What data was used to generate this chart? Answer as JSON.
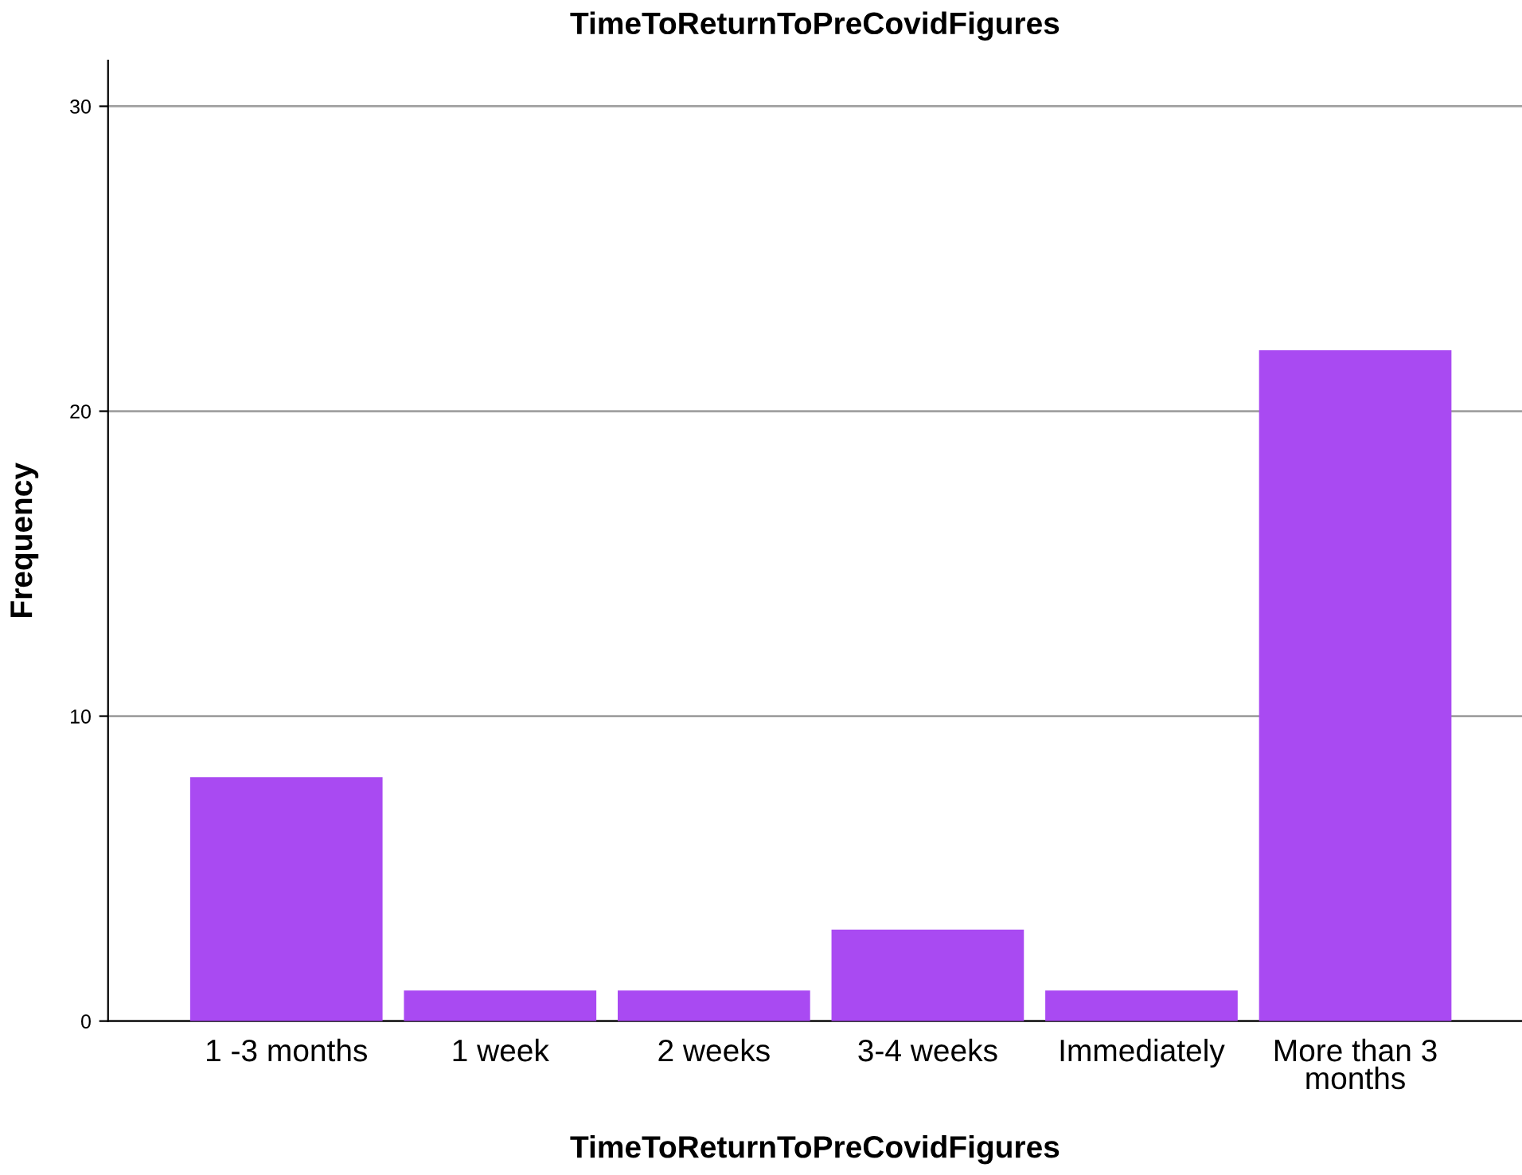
{
  "chart_data": {
    "type": "bar",
    "title": "TimeToReturnToPreCovidFigures",
    "xlabel": "TimeToReturnToPreCovidFigures",
    "ylabel": "Frequency",
    "categories": [
      "1 -3 months",
      "1 week",
      "2 weeks",
      "3-4 weeks",
      "Immediately",
      "More than 3\nmonths"
    ],
    "values": [
      8,
      1,
      1,
      3,
      1,
      22
    ],
    "color": "#a94af2",
    "ylim": [
      0,
      31.5
    ],
    "yticks": [
      0,
      10,
      20,
      30
    ],
    "grid": "y",
    "legend": false
  }
}
